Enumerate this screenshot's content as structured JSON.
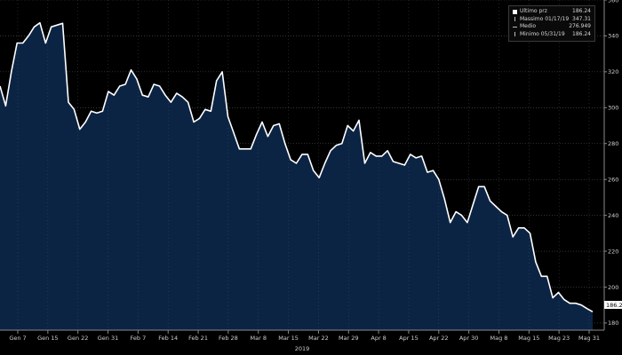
{
  "legend": {
    "items": [
      {
        "label": "Ultimo prz",
        "value": "186.24"
      },
      {
        "label": "Massimo 01/17/19",
        "value": "347.31"
      },
      {
        "label": "Medio",
        "value": "276.949"
      },
      {
        "label": "Minimo 05/31/19",
        "value": "186.24"
      }
    ]
  },
  "last_price_tag": "186.24",
  "year_label": "2019",
  "colors": {
    "line": "#ffffff",
    "fill": "#0c2444",
    "background": "#000000",
    "grid": "#6a6a6a"
  },
  "chart_data": {
    "type": "area",
    "title": "",
    "xlabel": "2019",
    "ylabel": "",
    "ylim": [
      176,
      360
    ],
    "grid": true,
    "legend_position": "top-right",
    "y_ticks": [
      180,
      200,
      220,
      240,
      260,
      280,
      300,
      320,
      340,
      360
    ],
    "x_ticks": [
      "Gen 7",
      "Gen 15",
      "Gen 22",
      "Gen 31",
      "Feb 7",
      "Feb 14",
      "Feb 21",
      "Feb 28",
      "Mar 8",
      "Mar 15",
      "Mar 22",
      "Mar 29",
      "Apr 8",
      "Apr 15",
      "Apr 22",
      "Apr 30",
      "Mag 8",
      "Mag 15",
      "Mag 23",
      "Mag 31"
    ],
    "series": [
      {
        "name": "Ultimo prz",
        "values": [
          312,
          301,
          320,
          336,
          336,
          340,
          345,
          347.31,
          336,
          345,
          346,
          347,
          303,
          299,
          288,
          292,
          298,
          297,
          298,
          309,
          307,
          312,
          313,
          321,
          316,
          307,
          306,
          313,
          312,
          307,
          303,
          308,
          306,
          303,
          292,
          294,
          299,
          298,
          315,
          320,
          295,
          286,
          277,
          277,
          277,
          285,
          292,
          284,
          290,
          291,
          280,
          271,
          269,
          274,
          274,
          265,
          261,
          269,
          276,
          279,
          280,
          290,
          287,
          293,
          269,
          275,
          273,
          273,
          276,
          270,
          269,
          268,
          274,
          272,
          273,
          264,
          265,
          260,
          249,
          236,
          242,
          240,
          236,
          246,
          256,
          256,
          248,
          245,
          242,
          240,
          228,
          233,
          233,
          230,
          214,
          206,
          206,
          194,
          197,
          193,
          191,
          191,
          190,
          188,
          186.24
        ]
      }
    ]
  }
}
